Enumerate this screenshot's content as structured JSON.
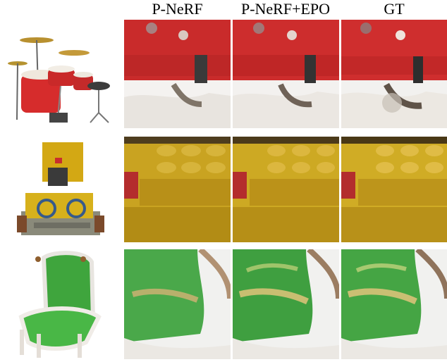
{
  "columns": [
    "P-NeRF",
    "P-NeRF+EPO",
    "GT"
  ],
  "rows": [
    {
      "scene": "drums",
      "object-icon": "drum-kit-render"
    },
    {
      "scene": "lego",
      "object-icon": "lego-bulldozer-render"
    },
    {
      "scene": "chair",
      "object-icon": "green-armchair-render"
    }
  ],
  "colors": {
    "drum_red": "#d62c2c",
    "lego_yellow": "#d7b11c",
    "chair_green": "#3fa53d"
  }
}
